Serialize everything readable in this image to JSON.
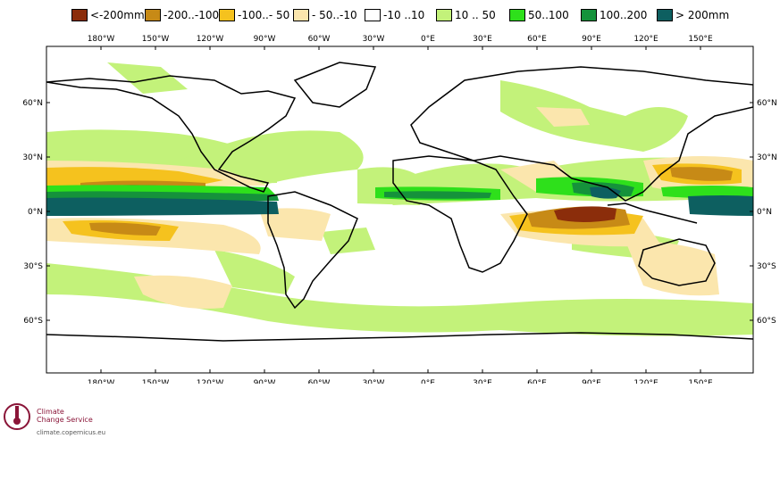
{
  "legend": [
    {
      "label": "<-200mm",
      "color": "#8b2d0b"
    },
    {
      "label": "-200..-100",
      "color": "#c78a16"
    },
    {
      "label": "-100..- 50",
      "color": "#f5c21e"
    },
    {
      "label": "- 50..-10",
      "color": "#fbe6ad"
    },
    {
      "label": "-10 ..10",
      "color": "#ffffff"
    },
    {
      "label": "10 .. 50",
      "color": "#c3f27a"
    },
    {
      "label": "50..100",
      "color": "#2ee01b"
    },
    {
      "label": "100..200",
      "color": "#15923b"
    },
    {
      "label": "> 200mm",
      "color": "#0d5f60"
    }
  ],
  "lon_labels": [
    "180°W",
    "150°W",
    "120°W",
    "90°W",
    "60°W",
    "30°W",
    "0°E",
    "30°E",
    "60°E",
    "90°E",
    "120°E",
    "150°E"
  ],
  "lat_labels": [
    "60°N",
    "30°N",
    "0°N",
    "30°S",
    "60°S"
  ],
  "logo": {
    "line1": "Climate",
    "line2": "Change Service",
    "url": "climate.copernicus.eu"
  }
}
